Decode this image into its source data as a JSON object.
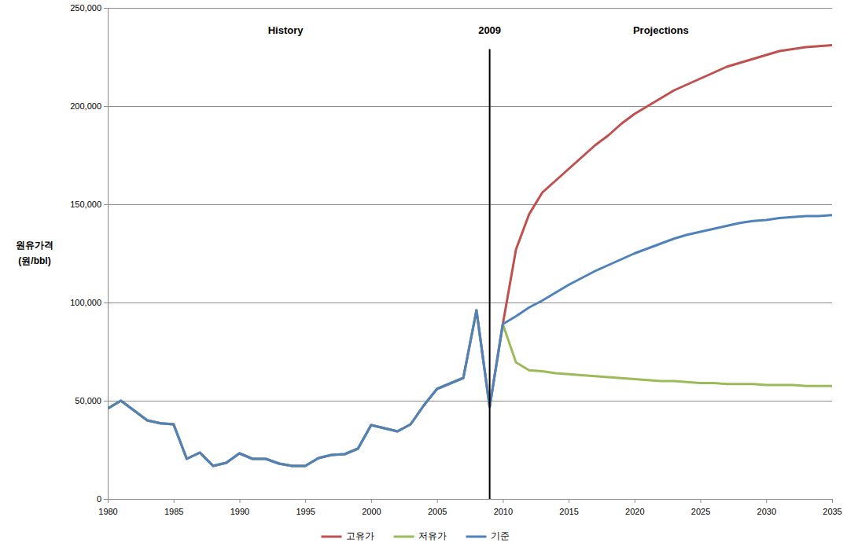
{
  "chart_data": {
    "type": "line",
    "ylabel": [
      "원유가격",
      "(원/bbl)"
    ],
    "x": [
      1980,
      1981,
      1982,
      1983,
      1984,
      1985,
      1986,
      1987,
      1988,
      1989,
      1990,
      1991,
      1992,
      1993,
      1994,
      1995,
      1996,
      1997,
      1998,
      1999,
      2000,
      2001,
      2002,
      2003,
      2004,
      2005,
      2006,
      2007,
      2008,
      2009,
      2010,
      2011,
      2012,
      2013,
      2014,
      2015,
      2016,
      2017,
      2018,
      2019,
      2020,
      2021,
      2022,
      2023,
      2024,
      2025,
      2026,
      2027,
      2028,
      2029,
      2030,
      2031,
      2032,
      2033,
      2034,
      2035
    ],
    "series": [
      {
        "name": "고유가",
        "color": "#c0504d",
        "values": [
          46000,
          50000,
          45000,
          40000,
          38500,
          38000,
          20400,
          23600,
          16800,
          18400,
          23200,
          20400,
          20400,
          18000,
          16800,
          16800,
          20800,
          22400,
          22800,
          25600,
          37600,
          36000,
          34400,
          38000,
          47600,
          56000,
          58800,
          61600,
          96000,
          46800,
          89000,
          127000,
          145000,
          156000,
          162000,
          168000,
          174000,
          180000,
          185000,
          191000,
          196000,
          200000,
          204000,
          208000,
          211000,
          214000,
          217000,
          220000,
          222000,
          224000,
          226000,
          228000,
          229000,
          230000,
          230500,
          231000
        ]
      },
      {
        "name": "저유가",
        "color": "#9bbb59",
        "values": [
          46000,
          50000,
          45000,
          40000,
          38500,
          38000,
          20400,
          23600,
          16800,
          18400,
          23200,
          20400,
          20400,
          18000,
          16800,
          16800,
          20800,
          22400,
          22800,
          25600,
          37600,
          36000,
          34400,
          38000,
          47600,
          56000,
          58800,
          61600,
          96000,
          46800,
          89000,
          69500,
          65500,
          65000,
          64000,
          63500,
          63000,
          62500,
          62000,
          61500,
          61000,
          60500,
          60000,
          60000,
          59500,
          59000,
          59000,
          58500,
          58500,
          58500,
          58000,
          58000,
          58000,
          57500,
          57500,
          57500
        ]
      },
      {
        "name": "기준",
        "color": "#4f81bd",
        "values": [
          46000,
          50000,
          45000,
          40000,
          38500,
          38000,
          20400,
          23600,
          16800,
          18400,
          23200,
          20400,
          20400,
          18000,
          16800,
          16800,
          20800,
          22400,
          22800,
          25600,
          37600,
          36000,
          34400,
          38000,
          47600,
          56000,
          58800,
          61600,
          96000,
          46800,
          89000,
          93000,
          97500,
          101000,
          105000,
          109000,
          112500,
          116000,
          119000,
          122000,
          125000,
          127500,
          130000,
          132500,
          134500,
          136000,
          137500,
          139000,
          140500,
          141500,
          142000,
          143000,
          143500,
          144000,
          144000,
          144500
        ]
      }
    ],
    "xlim": [
      1980,
      2035
    ],
    "xticks": [
      1980,
      1985,
      1990,
      1995,
      2000,
      2005,
      2010,
      2015,
      2020,
      2025,
      2030,
      2035
    ],
    "ylim": [
      0,
      250000
    ],
    "yticks": [
      0,
      {
        "value": 50000,
        "label": "50,000"
      },
      {
        "value": 100000,
        "label": "100,000"
      },
      {
        "value": 150000,
        "label": "150,000"
      },
      {
        "value": 200000,
        "label": "200,000"
      },
      {
        "value": 250000,
        "label": "250,000"
      }
    ],
    "grid": true,
    "legend": "bottom",
    "annotations": [
      {
        "text": "History",
        "x": 1993.5,
        "y": 238000
      },
      {
        "text": "2009",
        "x": 2009,
        "y": 238000
      },
      {
        "text": "Projections",
        "x": 2022,
        "y": 238000
      }
    ],
    "vline": {
      "x": 2009,
      "y": [
        0,
        229000
      ]
    }
  }
}
